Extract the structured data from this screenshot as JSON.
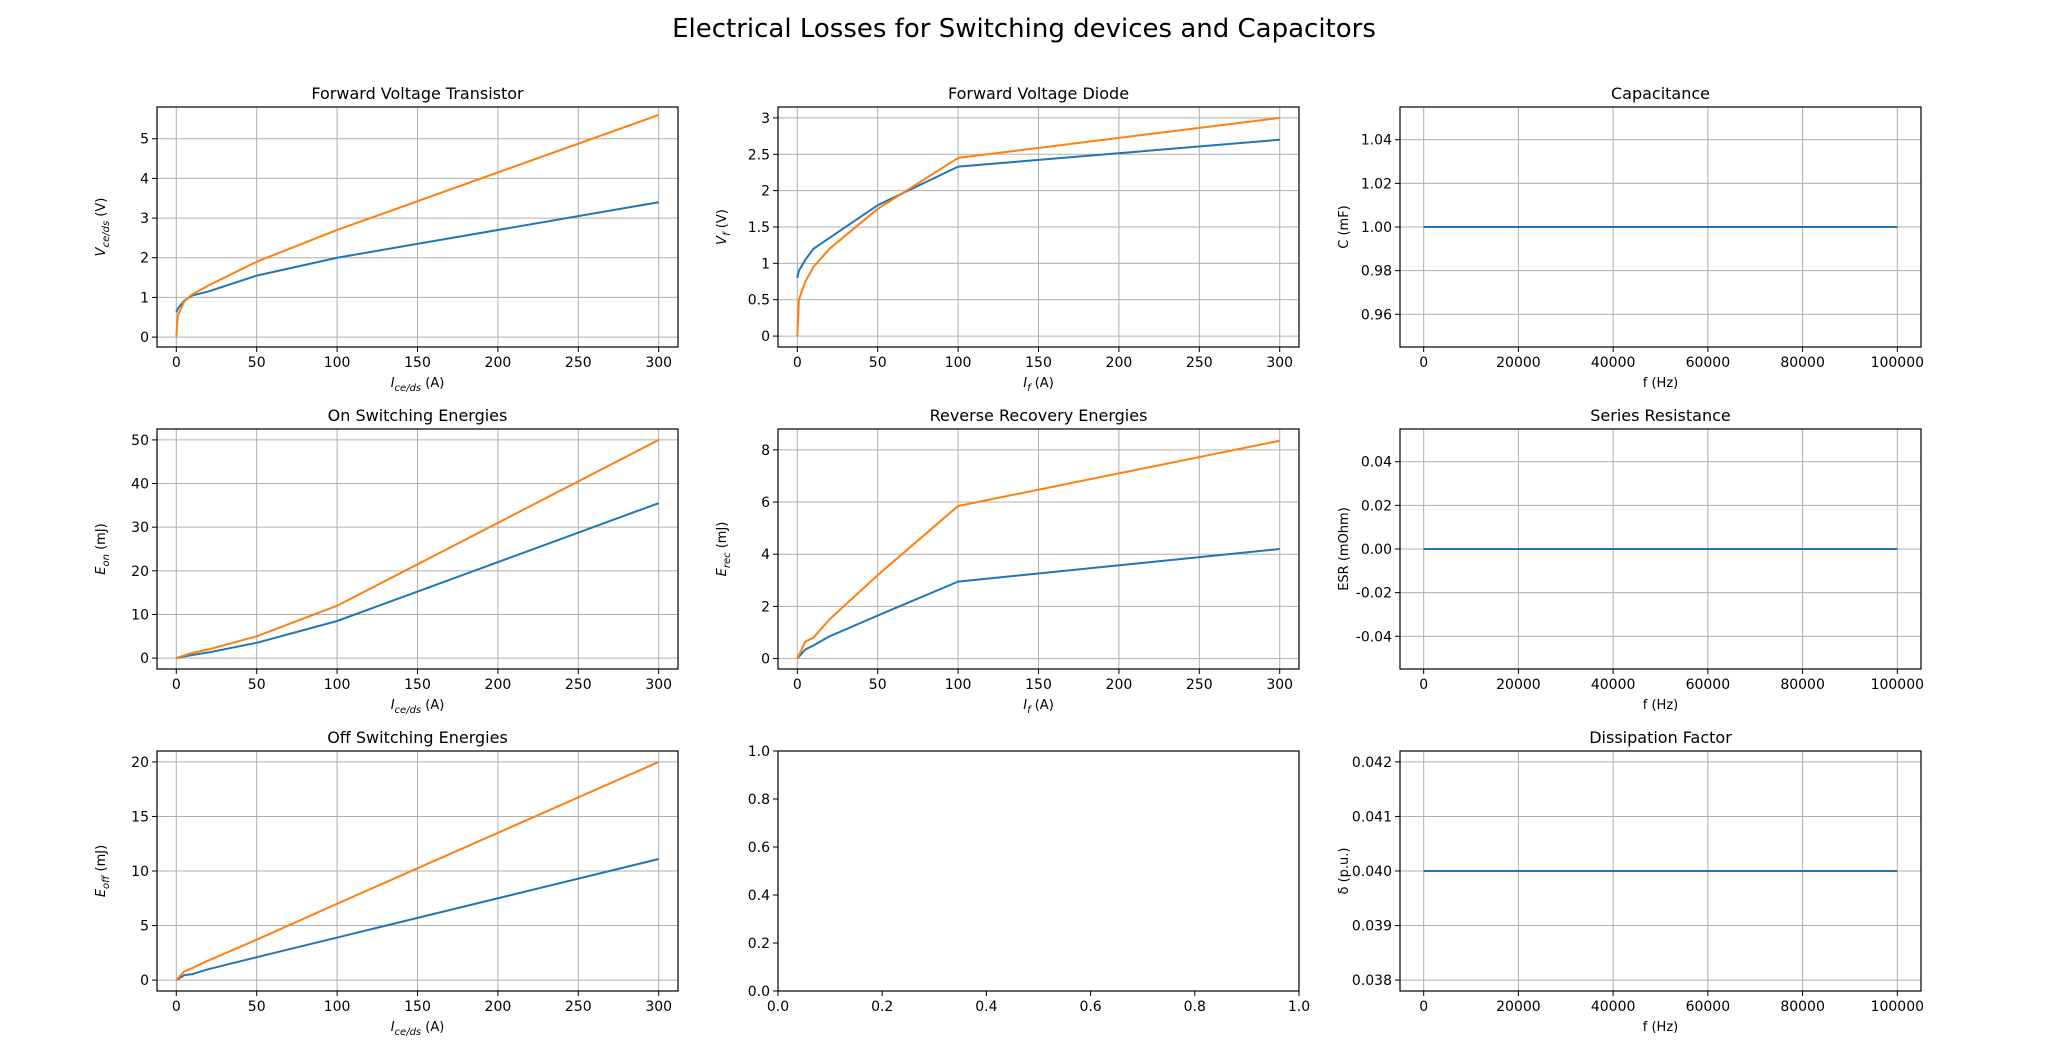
{
  "figure_title": "Electrical Losses for Switching devices and Capacitors",
  "colors": {
    "series1": "#1f77b4",
    "series2": "#ff7f0e",
    "grid": "#b0b0b0",
    "axis": "#000000"
  },
  "chart_data": [
    {
      "type": "line",
      "title": "Forward Voltage Transistor",
      "xlabel": "I_{ce/ds} (A)",
      "ylabel": "V_{ce/ds} (V)",
      "xlim": [
        -12,
        312
      ],
      "ylim": [
        -0.25,
        5.8
      ],
      "xticks": [
        0,
        50,
        100,
        150,
        200,
        250,
        300
      ],
      "yticks": [
        0,
        1,
        2,
        3,
        4,
        5
      ],
      "grid": true,
      "series": [
        {
          "name": "series1",
          "x": [
            0,
            1,
            5,
            10,
            20,
            50,
            100,
            300
          ],
          "y": [
            0.62,
            0.72,
            0.92,
            1.05,
            1.15,
            1.55,
            2.0,
            3.4
          ]
        },
        {
          "name": "series2",
          "x": [
            0,
            1,
            5,
            10,
            20,
            50,
            100,
            300
          ],
          "y": [
            0.0,
            0.55,
            0.9,
            1.08,
            1.3,
            1.9,
            2.7,
            5.6
          ]
        }
      ]
    },
    {
      "type": "line",
      "title": "Forward Voltage Diode",
      "xlabel": "I_{f} (A)",
      "ylabel": "V_{f} (V)",
      "xlim": [
        -12,
        312
      ],
      "ylim": [
        -0.15,
        3.15
      ],
      "xticks": [
        0,
        50,
        100,
        150,
        200,
        250,
        300
      ],
      "yticks": [
        0.0,
        0.5,
        1.0,
        1.5,
        2.0,
        2.5,
        3.0
      ],
      "grid": true,
      "series": [
        {
          "name": "series1",
          "x": [
            0,
            1,
            5,
            10,
            20,
            50,
            100,
            300
          ],
          "y": [
            0.8,
            0.9,
            1.05,
            1.2,
            1.35,
            1.8,
            2.33,
            2.7
          ]
        },
        {
          "name": "series2",
          "x": [
            0,
            1,
            5,
            10,
            20,
            50,
            100,
            300
          ],
          "y": [
            0.0,
            0.5,
            0.75,
            0.95,
            1.2,
            1.75,
            2.45,
            3.0
          ]
        }
      ]
    },
    {
      "type": "line",
      "title": "Capacitance",
      "xlabel": "f (Hz)",
      "ylabel": "C (mF)",
      "xlim": [
        -5000,
        105000
      ],
      "ylim": [
        0.945,
        1.055
      ],
      "xticks": [
        0,
        20000,
        40000,
        60000,
        80000,
        100000
      ],
      "yticks": [
        0.96,
        0.98,
        1.0,
        1.02,
        1.04
      ],
      "yfmt": 2,
      "grid": true,
      "series": [
        {
          "name": "series1",
          "x": [
            0,
            100000
          ],
          "y": [
            1.0,
            1.0
          ]
        }
      ]
    },
    {
      "type": "line",
      "title": "On Switching Energies",
      "xlabel": "I_{ce/ds} (A)",
      "ylabel": "E_{on} (mJ)",
      "xlim": [
        -12,
        312
      ],
      "ylim": [
        -2.5,
        52.5
      ],
      "xticks": [
        0,
        50,
        100,
        150,
        200,
        250,
        300
      ],
      "yticks": [
        0,
        10,
        20,
        30,
        40,
        50
      ],
      "grid": true,
      "series": [
        {
          "name": "series1",
          "x": [
            0,
            5,
            10,
            20,
            50,
            100,
            300
          ],
          "y": [
            0,
            0.4,
            0.7,
            1.3,
            3.5,
            8.5,
            35.5
          ]
        },
        {
          "name": "series2",
          "x": [
            0,
            5,
            10,
            20,
            50,
            100,
            300
          ],
          "y": [
            0,
            0.6,
            1.2,
            2.0,
            5.0,
            12.0,
            50.0
          ]
        }
      ]
    },
    {
      "type": "line",
      "title": "Reverse Recovery Energies",
      "xlabel": "I_{f} (A)",
      "ylabel": "E_{rec} (mJ)",
      "xlim": [
        -12,
        312
      ],
      "ylim": [
        -0.4,
        8.8
      ],
      "xticks": [
        0,
        50,
        100,
        150,
        200,
        250,
        300
      ],
      "yticks": [
        0,
        2,
        4,
        6,
        8
      ],
      "grid": true,
      "series": [
        {
          "name": "series1",
          "x": [
            0,
            5,
            10,
            20,
            50,
            100,
            300
          ],
          "y": [
            0,
            0.35,
            0.5,
            0.85,
            1.65,
            2.95,
            4.2
          ]
        },
        {
          "name": "series2",
          "x": [
            0,
            5,
            10,
            20,
            50,
            100,
            300
          ],
          "y": [
            0,
            0.65,
            0.8,
            1.5,
            3.2,
            5.85,
            8.35
          ]
        }
      ]
    },
    {
      "type": "line",
      "title": "Series Resistance",
      "xlabel": "f (Hz)",
      "ylabel": "ESR (mOhm)",
      "xlim": [
        -5000,
        105000
      ],
      "ylim": [
        -0.055,
        0.055
      ],
      "xticks": [
        0,
        20000,
        40000,
        60000,
        80000,
        100000
      ],
      "yticks": [
        -0.04,
        -0.02,
        0.0,
        0.02,
        0.04
      ],
      "yfmt": 2,
      "grid": true,
      "series": [
        {
          "name": "series1",
          "x": [
            0,
            100000
          ],
          "y": [
            0.0,
            0.0
          ]
        }
      ]
    },
    {
      "type": "line",
      "title": "Off Switching Energies",
      "xlabel": "I_{ce/ds} (A)",
      "ylabel": "E_{off} (mJ)",
      "xlim": [
        -12,
        312
      ],
      "ylim": [
        -1,
        21
      ],
      "xticks": [
        0,
        50,
        100,
        150,
        200,
        250,
        300
      ],
      "yticks": [
        0,
        5,
        10,
        15,
        20
      ],
      "grid": true,
      "series": [
        {
          "name": "series1",
          "x": [
            0,
            5,
            10,
            20,
            50,
            100,
            300
          ],
          "y": [
            0,
            0.45,
            0.55,
            1.0,
            2.1,
            3.9,
            11.1
          ]
        },
        {
          "name": "series2",
          "x": [
            0,
            5,
            10,
            20,
            50,
            100,
            300
          ],
          "y": [
            0,
            0.8,
            1.1,
            1.8,
            3.7,
            7.0,
            20.0
          ]
        }
      ]
    },
    {
      "type": "line",
      "title": "",
      "xlabel": "",
      "ylabel": "",
      "xlim": [
        0,
        1
      ],
      "ylim": [
        0,
        1
      ],
      "xticks": [
        0.0,
        0.2,
        0.4,
        0.6,
        0.8,
        1.0
      ],
      "yticks": [
        0.0,
        0.2,
        0.4,
        0.6,
        0.8,
        1.0
      ],
      "xfmt": 1,
      "yfmt": 1,
      "grid": false,
      "series": []
    },
    {
      "type": "line",
      "title": "Dissipation Factor",
      "xlabel": "f (Hz)",
      "ylabel": "δ (p.u.)",
      "xlim": [
        -5000,
        105000
      ],
      "ylim": [
        0.0378,
        0.0422
      ],
      "xticks": [
        0,
        20000,
        40000,
        60000,
        80000,
        100000
      ],
      "yticks": [
        0.038,
        0.039,
        0.04,
        0.041,
        0.042
      ],
      "yfmt": 3,
      "grid": true,
      "series": [
        {
          "name": "series1",
          "x": [
            0,
            100000
          ],
          "y": [
            0.04,
            0.04
          ]
        }
      ]
    }
  ]
}
